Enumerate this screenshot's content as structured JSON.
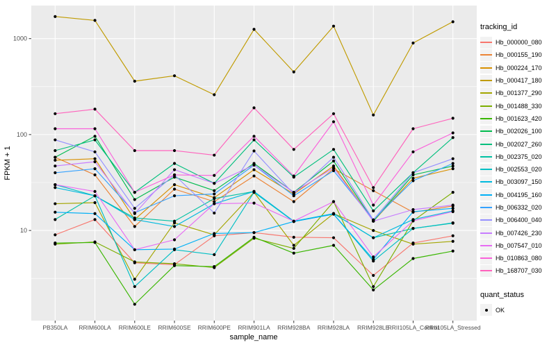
{
  "figure": {
    "ylabel": "FPKM + 1",
    "xlabel": "sample_name",
    "legend": {
      "color_title": "tracking_id",
      "shape_title": "quant_status",
      "shape_items": [
        {
          "label": "OK",
          "marker": "black-point"
        }
      ]
    }
  },
  "colors": {
    "page_bg": "#FFFFFF",
    "panel_bg": "#EBEBEB",
    "grid": "#FFFFFF",
    "tick_mark": "#333333",
    "tick_text": "#4D4D4D",
    "title_text": "#000000",
    "legend_key_bg": "#F2F2F2",
    "marker": "#000000"
  },
  "chart_data": {
    "type": "line",
    "title": "",
    "xlabel": "sample_name",
    "ylabel": "FPKM + 1",
    "y_scale": "log10",
    "y_ticks": [
      10,
      100,
      1000
    ],
    "y_minor_ticks": [
      3.162,
      31.62,
      316.2
    ],
    "ylim": [
      1.2,
      2200
    ],
    "grid": true,
    "legend_position": "right",
    "marker": "black point (quant_status = OK)",
    "categories": [
      "PB350LA",
      "RRIM600LA",
      "RRIM600LE",
      "RRIM600SE",
      "RRIM600PE",
      "RRIM901LA",
      "RRIM928BA",
      "RRIM928LA",
      "RRIM928LE",
      "RRII105LA_Control",
      "RRII105LA_Stressed"
    ],
    "series": [
      {
        "name": "Hb_000000_080",
        "color": "#F8766D",
        "values": [
          9.0,
          13,
          4.6,
          4.4,
          8.8,
          9.5,
          8.5,
          8.4,
          3.4,
          7.4,
          8.8
        ]
      },
      {
        "name": "Hb_000155_190",
        "color": "#EB8335",
        "values": [
          58,
          38,
          11,
          27,
          20,
          37,
          20,
          44,
          26,
          15.5,
          18
        ]
      },
      {
        "name": "Hb_000224_170",
        "color": "#D89000",
        "values": [
          54,
          56,
          13,
          30,
          22,
          43,
          24,
          47,
          12.5,
          35,
          44
        ]
      },
      {
        "name": "Hb_000417_180",
        "color": "#C09B00",
        "values": [
          1700,
          1550,
          360,
          410,
          260,
          1250,
          450,
          1350,
          160,
          900,
          1500
        ]
      },
      {
        "name": "Hb_001377_290",
        "color": "#A3A500",
        "values": [
          19,
          19.5,
          3.1,
          12,
          9.0,
          25,
          7.0,
          15,
          10,
          7.2,
          7.7
        ]
      },
      {
        "name": "Hb_001488_330",
        "color": "#7CAE00",
        "values": [
          7.2,
          7.6,
          4.7,
          4.5,
          4.1,
          8.3,
          6.5,
          20,
          2.6,
          12.6,
          25
        ]
      },
      {
        "name": "Hb_001623_420",
        "color": "#39B600",
        "values": [
          7.4,
          7.5,
          1.7,
          4.3,
          4.2,
          8.5,
          5.8,
          7.0,
          2.4,
          5.1,
          6.1
        ]
      },
      {
        "name": "Hb_002026_100",
        "color": "#00BB4E",
        "values": [
          58,
          96,
          21,
          36,
          26,
          50,
          25,
          53,
          12.5,
          38,
          47
        ]
      },
      {
        "name": "Hb_002027_260",
        "color": "#00BF7D",
        "values": [
          68,
          88,
          25,
          50,
          31,
          88,
          36,
          70,
          16,
          40,
          93
        ]
      },
      {
        "name": "Hb_002375_020",
        "color": "#00C1A3",
        "values": [
          13,
          23,
          13.5,
          12.5,
          21.5,
          25.5,
          12.4,
          15,
          8.4,
          10.5,
          11.9
        ]
      },
      {
        "name": "Hb_002553_020",
        "color": "#00BFC4",
        "values": [
          30,
          23,
          2.6,
          6.3,
          5.6,
          25,
          12.4,
          14.8,
          4.8,
          10.5,
          12
        ]
      },
      {
        "name": "Hb_003097_150",
        "color": "#00BADE",
        "values": [
          28,
          23,
          13,
          11,
          19,
          25.5,
          12.5,
          15,
          8.4,
          13,
          16
        ]
      },
      {
        "name": "Hb_004195_160",
        "color": "#00B0F6",
        "values": [
          15.5,
          15,
          6.3,
          6.4,
          9.3,
          9.5,
          12.4,
          14.8,
          5.0,
          15.7,
          17
        ]
      },
      {
        "name": "Hb_006332_020",
        "color": "#35A2FF",
        "values": [
          40,
          44,
          15.3,
          23,
          24,
          48,
          23,
          42,
          12.9,
          33,
          50
        ]
      },
      {
        "name": "Hb_006400_040",
        "color": "#9590FF",
        "values": [
          88,
          66,
          17,
          38,
          15.2,
          67.5,
          24,
          58,
          12.9,
          40,
          56
        ]
      },
      {
        "name": "Hb_007426_230",
        "color": "#C77CFF",
        "values": [
          47,
          52,
          15,
          43,
          31,
          48,
          25,
          45,
          12.5,
          16.5,
          18.4
        ]
      },
      {
        "name": "Hb_007547_010",
        "color": "#E76BF3",
        "values": [
          30,
          25.5,
          6.3,
          8.0,
          19,
          19.3,
          12.5,
          20,
          5.3,
          12.6,
          15.7
        ]
      },
      {
        "name": "Hb_010863_080",
        "color": "#FA62DB",
        "values": [
          115,
          115,
          25,
          38,
          37.5,
          96,
          37,
          136,
          18.4,
          66,
          104
        ]
      },
      {
        "name": "Hb_168707_030",
        "color": "#FF62BC",
        "values": [
          165,
          184,
          68,
          68,
          61,
          190,
          70,
          165,
          28,
          115,
          148
        ]
      }
    ]
  }
}
